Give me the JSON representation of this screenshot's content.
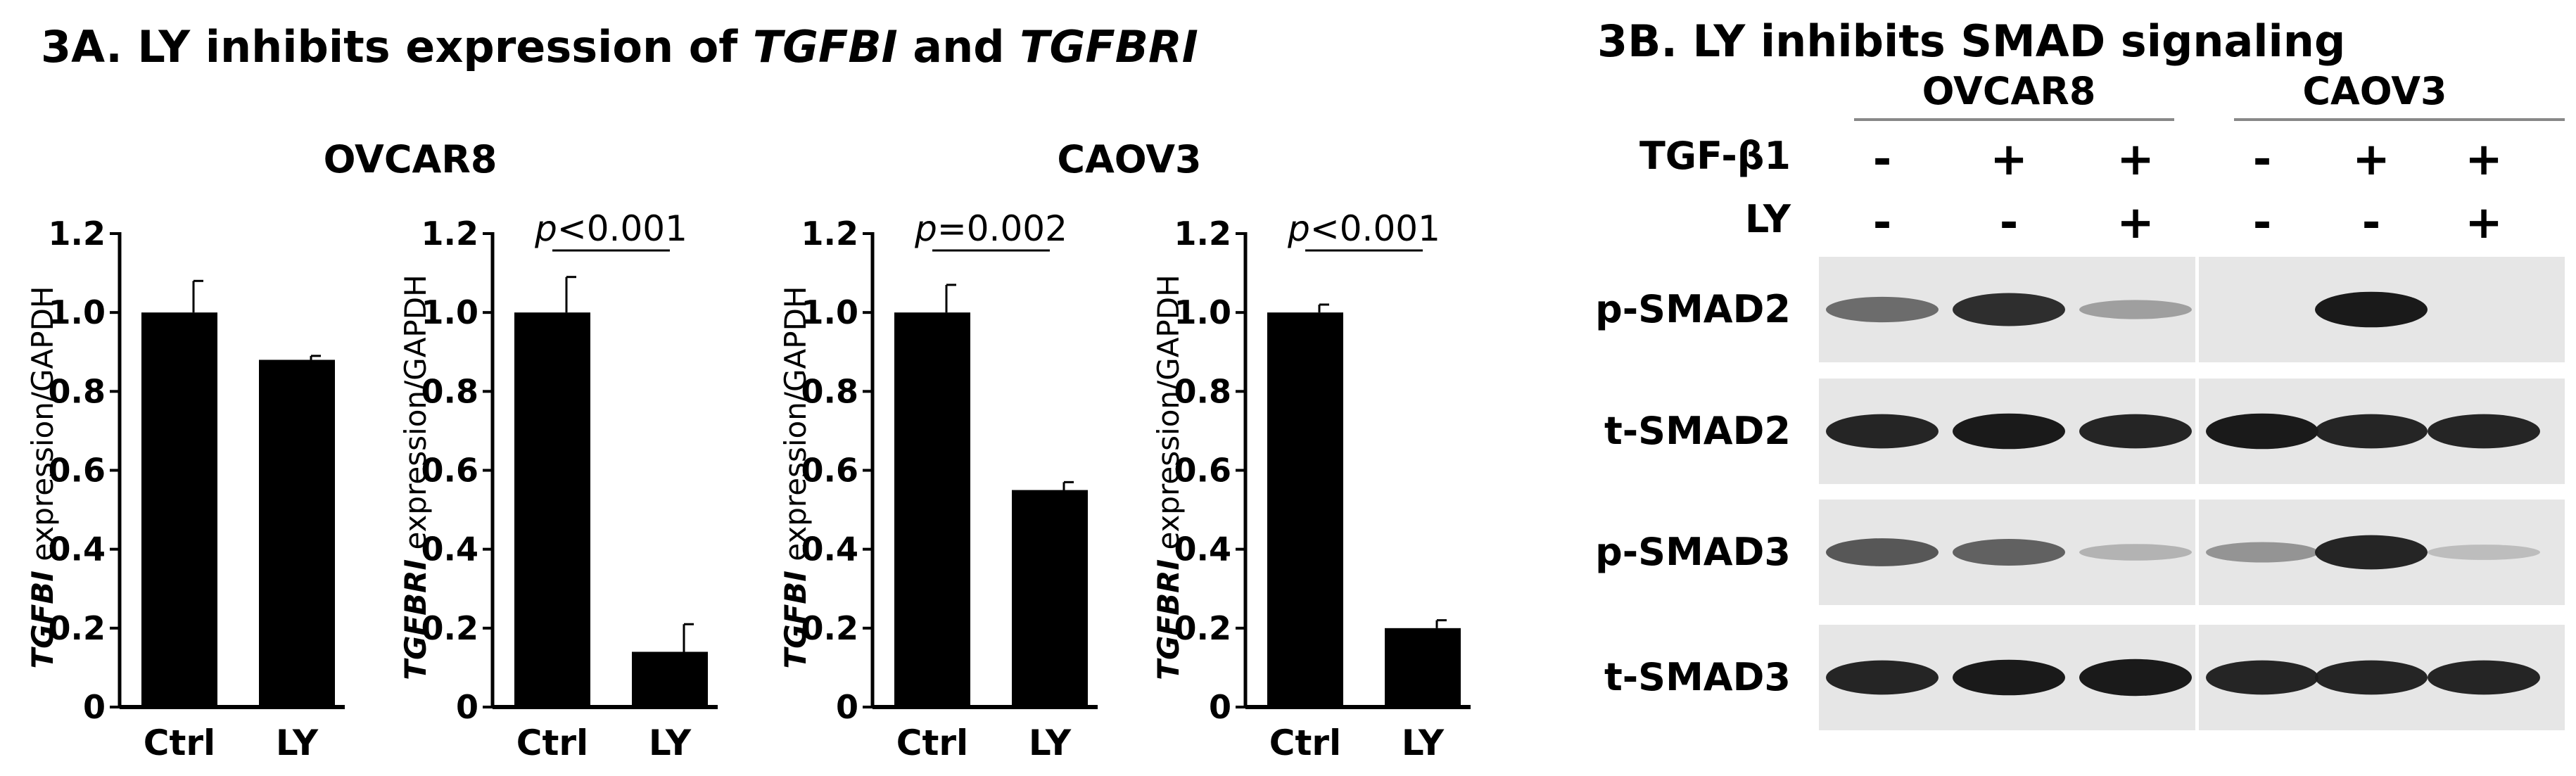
{
  "panel_a": {
    "title_prefix": "3A. LY inhibits expression of ",
    "title_gene1": "TGFBI",
    "title_and": " and ",
    "title_gene2": "TGFBRI"
  },
  "panel_b": {
    "title": "3B. LY inhibits SMAD signaling",
    "cell_lines": [
      "OVCAR8",
      "CAOV3"
    ],
    "conditions": [
      {
        "label": "TGF-β1",
        "values": [
          "-",
          "+",
          "+",
          "-",
          "+",
          "+"
        ]
      },
      {
        "label": "LY",
        "values": [
          "-",
          "-",
          "+",
          "-",
          "-",
          "+"
        ]
      }
    ],
    "blots": [
      {
        "label": "p-SMAD2",
        "intensity": [
          0.45,
          0.75,
          0.2,
          0.0,
          0.85,
          0.0
        ]
      },
      {
        "label": "t-SMAD2",
        "intensity": [
          0.8,
          0.85,
          0.8,
          0.85,
          0.8,
          0.8
        ]
      },
      {
        "label": "p-SMAD3",
        "intensity": [
          0.55,
          0.5,
          0.1,
          0.25,
          0.8,
          0.05
        ]
      },
      {
        "label": "t-SMAD3",
        "intensity": [
          0.8,
          0.85,
          0.9,
          0.8,
          0.8,
          0.8
        ]
      }
    ],
    "blot_fill_color": "#1a1a1a"
  },
  "chart_data": [
    {
      "type": "bar",
      "group": "OVCAR8",
      "ylabel_gene": "TGFBI",
      "ylabel_rest": " expression/GAPDH",
      "categories": [
        "Ctrl",
        "LY"
      ],
      "values": [
        1.0,
        0.88
      ],
      "errors": [
        0.08,
        0.01
      ],
      "ylim": [
        0,
        1.2
      ],
      "yticks": [
        "0",
        "0.2",
        "0.4",
        "0.6",
        "0.8",
        "1.0",
        "1.2"
      ],
      "pvalue": null,
      "bar_color": "#000000"
    },
    {
      "type": "bar",
      "group": "OVCAR8",
      "ylabel_gene": "TGFBRI",
      "ylabel_rest": " expression/GAPDH",
      "categories": [
        "Ctrl",
        "LY"
      ],
      "values": [
        1.0,
        0.14
      ],
      "errors": [
        0.09,
        0.07
      ],
      "ylim": [
        0,
        1.2
      ],
      "yticks": [
        "0",
        "0.2",
        "0.4",
        "0.6",
        "0.8",
        "1.0",
        "1.2"
      ],
      "pvalue": {
        "p": "p",
        "rest": "<0.001"
      },
      "bar_color": "#000000"
    },
    {
      "type": "bar",
      "group": "CAOV3",
      "ylabel_gene": "TGFBI",
      "ylabel_rest": " expression/GAPDH",
      "categories": [
        "Ctrl",
        "LY"
      ],
      "values": [
        1.0,
        0.55
      ],
      "errors": [
        0.07,
        0.02
      ],
      "ylim": [
        0,
        1.2
      ],
      "yticks": [
        "0",
        "0.2",
        "0.4",
        "0.6",
        "0.8",
        "1.0",
        "1.2"
      ],
      "pvalue": {
        "p": "p",
        "rest": "=0.002"
      },
      "bar_color": "#000000"
    },
    {
      "type": "bar",
      "group": "CAOV3",
      "ylabel_gene": "TGFBRI",
      "ylabel_rest": " expression/GAPDH",
      "categories": [
        "Ctrl",
        "LY"
      ],
      "values": [
        1.0,
        0.2
      ],
      "errors": [
        0.02,
        0.02
      ],
      "ylim": [
        0,
        1.2
      ],
      "yticks": [
        "0",
        "0.2",
        "0.4",
        "0.6",
        "0.8",
        "1.0",
        "1.2"
      ],
      "pvalue": {
        "p": "p",
        "rest": "<0.001"
      },
      "bar_color": "#000000"
    }
  ]
}
